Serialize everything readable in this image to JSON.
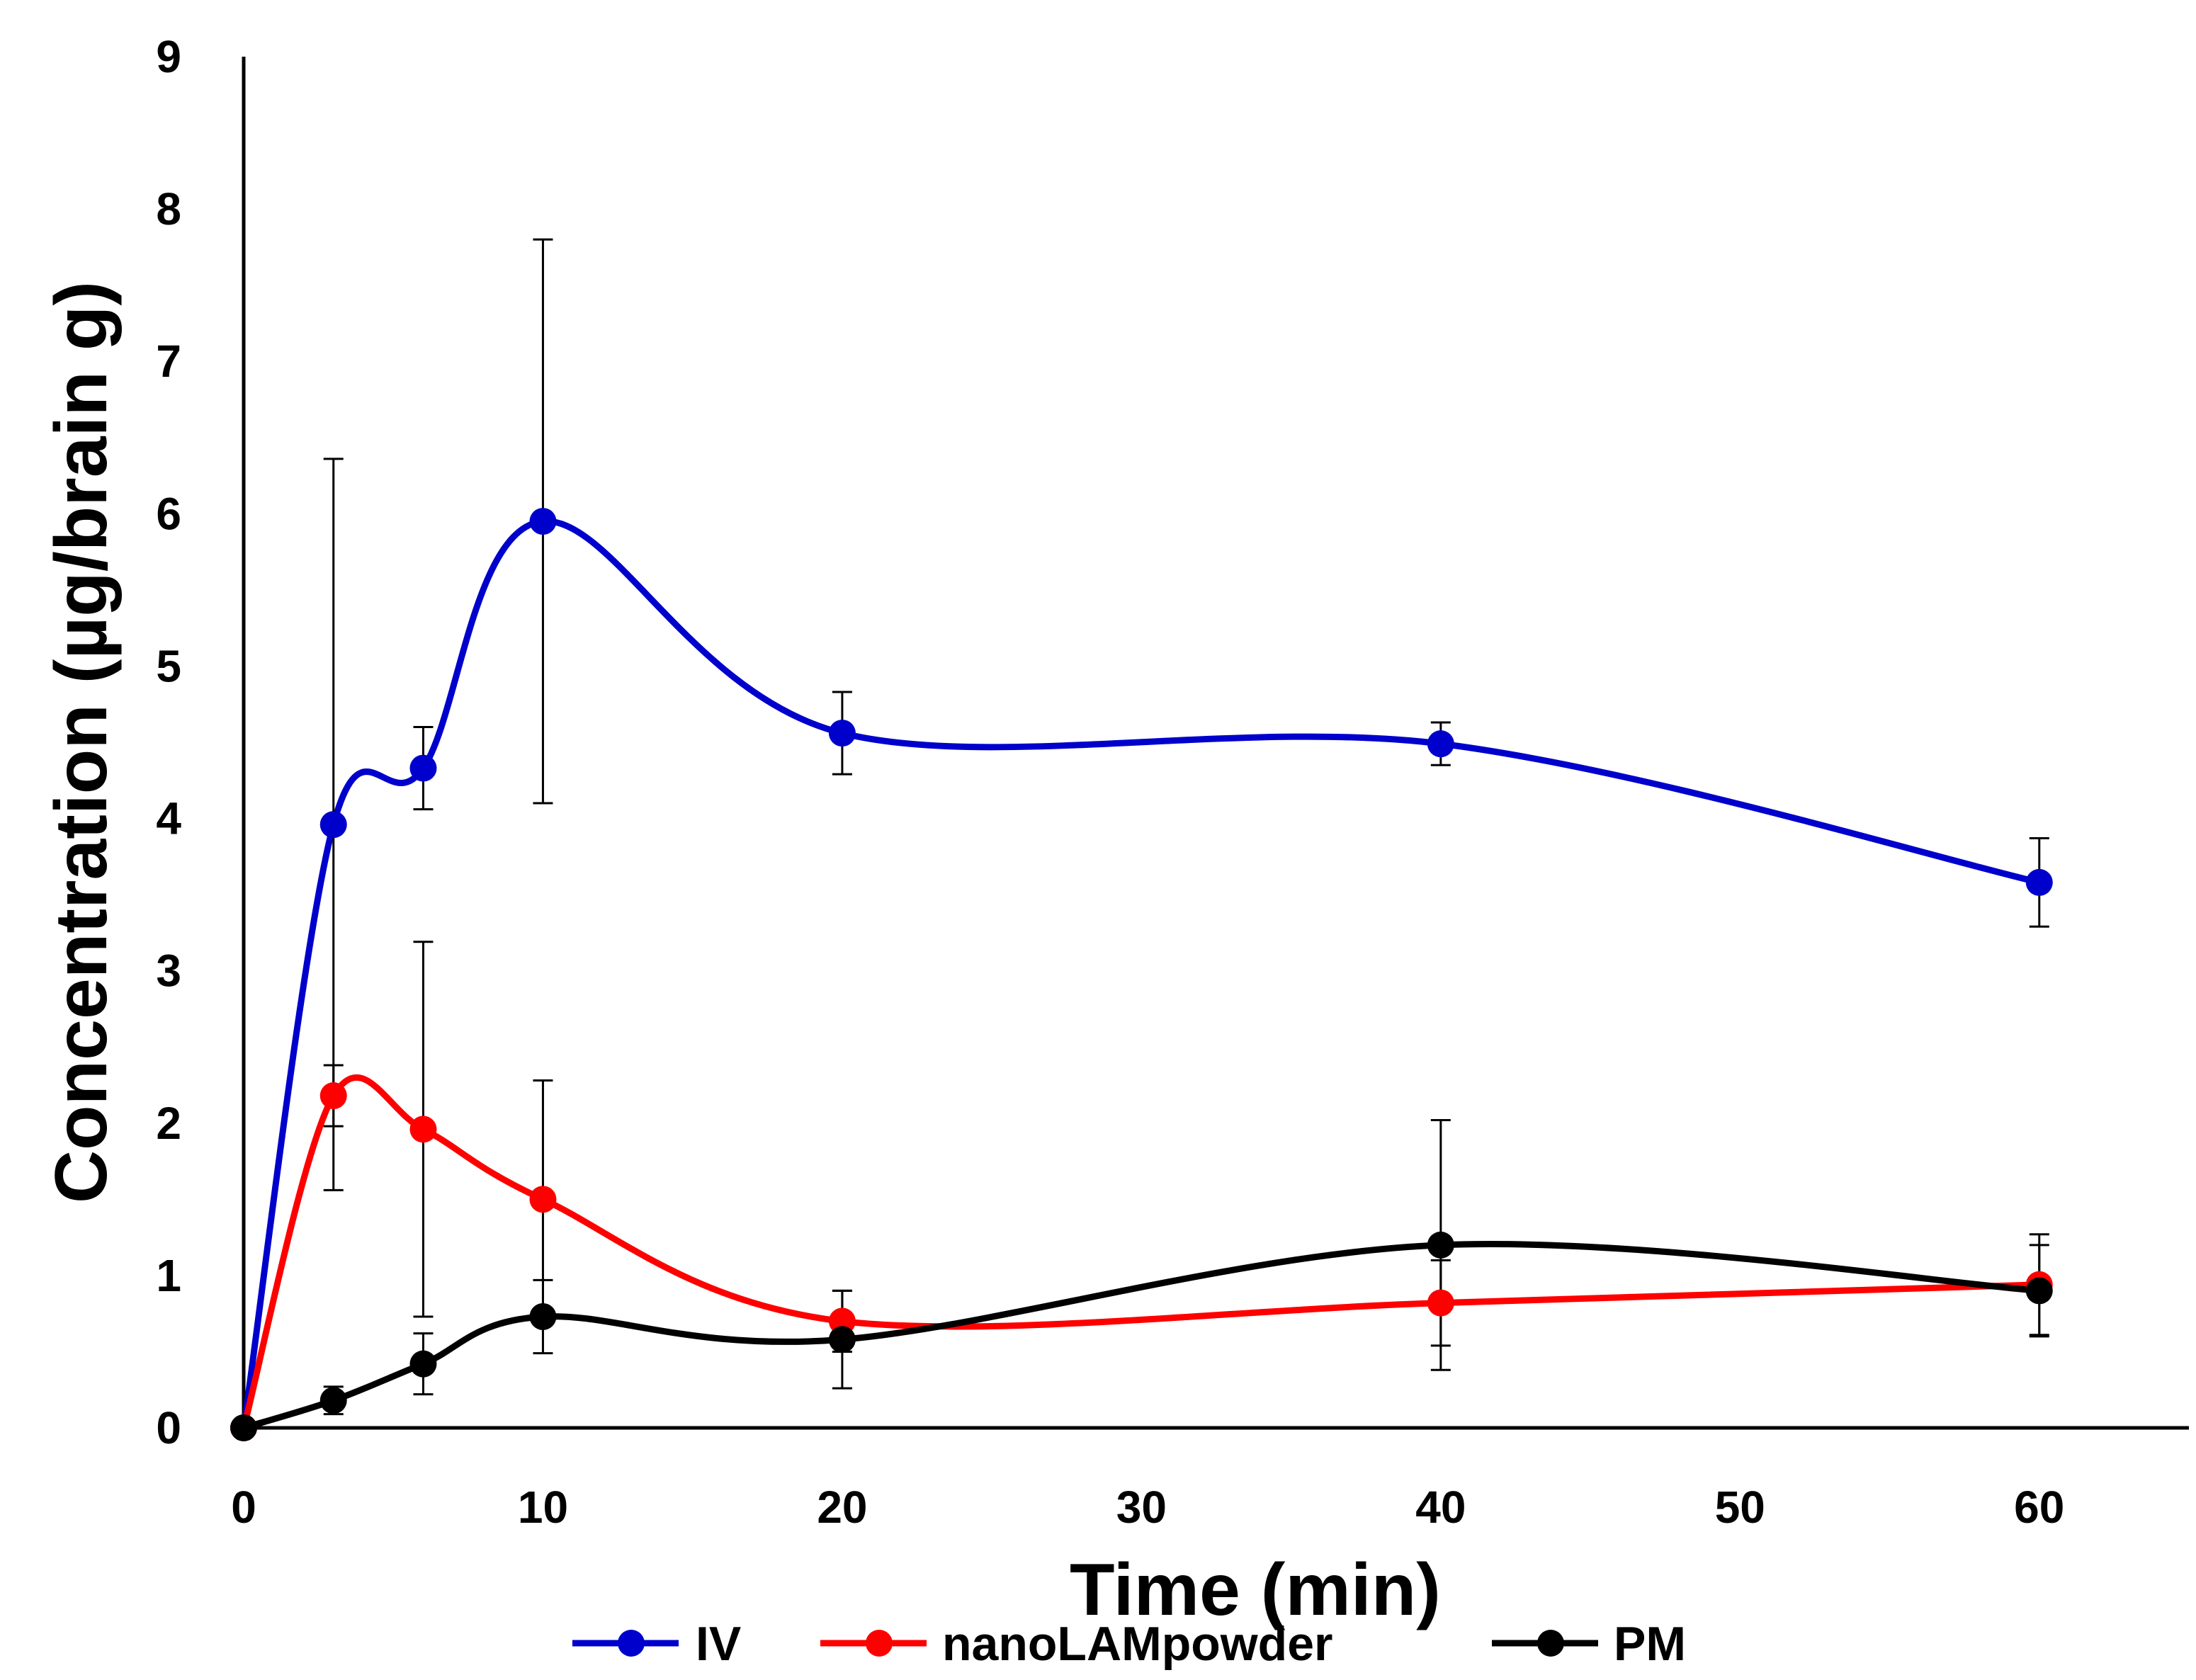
{
  "chart_data": {
    "type": "line",
    "title": "",
    "xlabel": "Time (min)",
    "ylabel": "Concentration (µg/brain g)",
    "xlim": [
      0,
      65
    ],
    "ylim": [
      0,
      9
    ],
    "xticks": [
      0,
      10,
      20,
      30,
      40,
      50,
      60
    ],
    "yticks": [
      0,
      1,
      2,
      3,
      4,
      5,
      6,
      7,
      8,
      9
    ],
    "grid": false,
    "legend_position": "bottom",
    "series": [
      {
        "name": "IV",
        "color": "#0000CC",
        "x": [
          0,
          3,
          6,
          10,
          20,
          40,
          60
        ],
        "y": [
          0,
          3.96,
          4.33,
          5.95,
          4.56,
          4.49,
          3.58
        ],
        "error": [
          0,
          2.4,
          0.27,
          1.85,
          0.27,
          0.14,
          0.29
        ]
      },
      {
        "name": "nanoLAMpowder",
        "color": "#FF0000",
        "x": [
          0,
          3,
          6,
          10,
          20,
          40,
          60
        ],
        "y": [
          0,
          2.18,
          1.96,
          1.5,
          0.7,
          0.82,
          0.94
        ],
        "error": [
          0,
          0.2,
          1.23,
          0.78,
          0.2,
          0.28,
          0.33
        ]
      },
      {
        "name": "PM",
        "color": "#000000",
        "x": [
          0,
          3,
          6,
          10,
          20,
          40,
          60
        ],
        "y": [
          0,
          0.18,
          0.42,
          0.73,
          0.58,
          1.2,
          0.9
        ],
        "error": [
          0,
          0.09,
          0.2,
          0.24,
          0.32,
          0.82,
          0.3
        ]
      }
    ]
  }
}
